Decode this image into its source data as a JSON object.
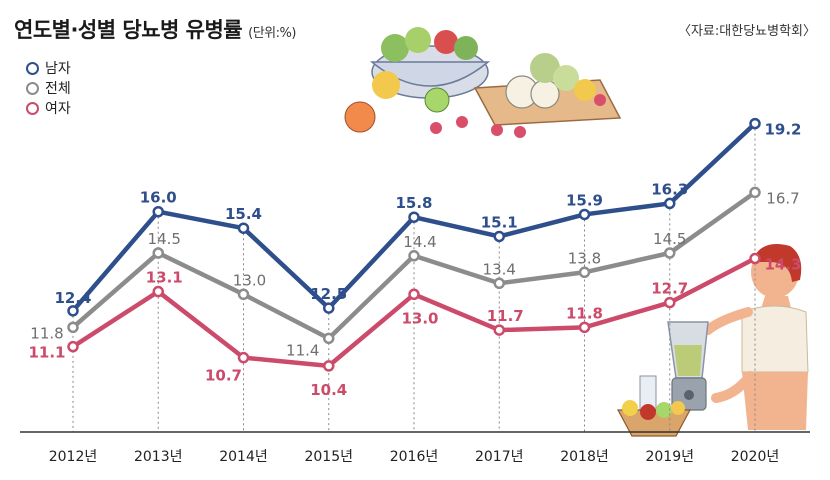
{
  "header": {
    "title": "연도별·성별 당뇨병 유병률",
    "unit": "(단위:%)",
    "source": "〈자료:대한당뇨병학회〉"
  },
  "chart_data": {
    "type": "line",
    "title": "연도별·성별 당뇨병 유병률",
    "unit": "(단위:%)",
    "x": [
      "2012년",
      "2013년",
      "2014년",
      "2015년",
      "2016년",
      "2017년",
      "2018년",
      "2019년",
      "2020년"
    ],
    "ylim": [
      8,
      21
    ],
    "grid": false,
    "legend_position": "top-left",
    "series": [
      {
        "name": "남자",
        "color": "#2e4f8c",
        "label_color": "#2e4f8c",
        "values": [
          12.4,
          16.0,
          15.4,
          12.5,
          15.8,
          15.1,
          15.9,
          16.3,
          19.2
        ],
        "labels": [
          "12.4",
          "16.0",
          "15.4",
          "12.5",
          "15.8",
          "15.1",
          "15.9",
          "16.3",
          "19.2"
        ]
      },
      {
        "name": "전체",
        "color": "#8c8c8c",
        "label_color": "#6f6f6f",
        "values": [
          11.8,
          14.5,
          13.0,
          11.4,
          14.4,
          13.4,
          13.8,
          14.5,
          16.7
        ],
        "labels": [
          "11.8",
          "14.5",
          "13.0",
          "11.4",
          "14.4",
          "13.4",
          "13.8",
          "14.5",
          "16.7"
        ]
      },
      {
        "name": "여자",
        "color": "#cc4a6a",
        "label_color": "#cc4a6a",
        "values": [
          11.1,
          13.1,
          10.7,
          10.4,
          13.0,
          11.7,
          11.8,
          12.7,
          14.3
        ],
        "labels": [
          "11.1",
          "13.1",
          "10.7",
          "10.4",
          "13.0",
          "11.7",
          "11.8",
          "12.7",
          "14.3"
        ]
      }
    ]
  }
}
